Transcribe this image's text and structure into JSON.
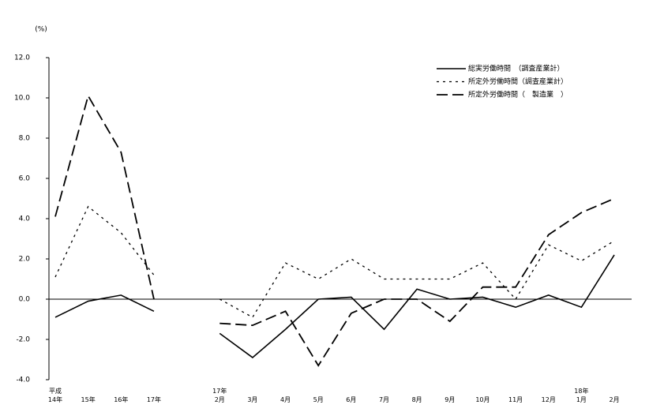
{
  "chart_data": {
    "type": "line",
    "y_axis_label": "(%)",
    "categories": [
      "平成\n14年",
      "15年",
      "16年",
      "17年",
      null,
      "17年\n2月",
      "3月",
      "4月",
      "5月",
      "6月",
      "7月",
      "8月",
      "9月",
      "10月",
      "11月",
      "12月",
      "18年\n1月",
      "2月"
    ],
    "series": [
      {
        "name": "総実労働時間　（調査産業計）",
        "color": "#000000",
        "dash": "solid",
        "values": [
          -0.9,
          -0.1,
          0.2,
          -0.6,
          null,
          -1.7,
          -2.9,
          -1.5,
          0.0,
          0.1,
          -1.5,
          0.5,
          0.0,
          0.1,
          -0.4,
          0.2,
          -0.4,
          2.2
        ]
      },
      {
        "name": "所定外労働時間（調査産業計）",
        "color": "#000000",
        "dash": "dotted",
        "values": [
          1.1,
          4.6,
          3.3,
          1.2,
          null,
          0.0,
          -0.9,
          1.8,
          1.0,
          2.0,
          1.0,
          1.0,
          1.0,
          1.8,
          0.0,
          2.7,
          1.9,
          2.9
        ]
      },
      {
        "name": "所定外労働時間（　製造業　）",
        "color": "#000000",
        "dash": "dashed",
        "values": [
          4.1,
          10.1,
          7.3,
          0.0,
          null,
          -1.2,
          -1.3,
          -0.6,
          -3.3,
          -0.7,
          0.0,
          0.0,
          -1.1,
          0.6,
          0.6,
          3.2,
          4.3,
          5.0
        ]
      }
    ],
    "ylim": [
      -4,
      12
    ],
    "yticks": [
      {
        "value": -4,
        "label": "-4.0"
      },
      {
        "value": -2,
        "label": "-2.0"
      },
      {
        "value": 0,
        "label": "0.0"
      },
      {
        "value": 2,
        "label": "2.0"
      },
      {
        "value": 4,
        "label": "4.0"
      },
      {
        "value": 6,
        "label": "6.0"
      },
      {
        "value": 8,
        "label": "8.0"
      },
      {
        "value": 10,
        "label": "10.0"
      },
      {
        "value": 12,
        "label": "12.0"
      }
    ],
    "legend": "upper right"
  }
}
